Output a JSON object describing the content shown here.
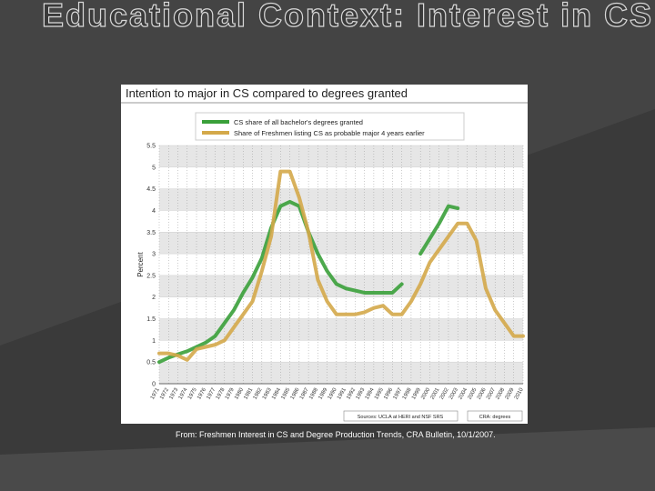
{
  "slide_title": "Educational Context: Interest in CS",
  "caption": "From: Freshmen Interest in CS and Degree Production Trends, CRA Bulletin, 10/1/2007.",
  "chart_data": {
    "type": "line",
    "title": "Intention to major in CS compared to degrees granted",
    "y_label": "Percent",
    "categories": [
      "1971",
      "1972",
      "1973",
      "1974",
      "1975",
      "1976",
      "1977",
      "1978",
      "1979",
      "1980",
      "1981",
      "1982",
      "1983",
      "1984",
      "1985",
      "1986",
      "1987",
      "1988",
      "1989",
      "1990",
      "1991",
      "1992",
      "1993",
      "1994",
      "1995",
      "1996",
      "1997",
      "1998",
      "1999",
      "2000",
      "2001",
      "2002",
      "2003",
      "2004",
      "2005",
      "2006",
      "2007",
      "2008",
      "2009",
      "2010"
    ],
    "series": [
      {
        "name": "CS share of all bachelor's degrees granted",
        "color": "#3aa03a",
        "values": [
          0.5,
          0.6,
          0.68,
          0.75,
          0.85,
          0.95,
          1.1,
          1.4,
          1.7,
          2.1,
          2.45,
          2.9,
          3.6,
          4.1,
          4.2,
          4.1,
          3.5,
          3.0,
          2.6,
          2.3,
          2.2,
          2.15,
          2.1,
          2.1,
          2.1,
          2.1,
          2.3,
          null,
          3.0,
          3.35,
          3.7,
          4.1,
          4.05,
          null,
          null,
          null,
          null,
          null,
          null,
          null
        ]
      },
      {
        "name": "Share of Freshmen listing CS as probable major 4 years earlier",
        "color": "#d4a94a",
        "values": [
          0.7,
          0.7,
          0.65,
          0.55,
          0.8,
          0.85,
          0.9,
          1.0,
          1.3,
          1.6,
          1.9,
          2.6,
          3.4,
          4.9,
          4.9,
          4.3,
          3.5,
          2.4,
          1.9,
          1.6,
          1.6,
          1.6,
          1.65,
          1.75,
          1.8,
          1.6,
          1.6,
          1.9,
          2.3,
          2.8,
          3.1,
          3.4,
          3.7,
          3.7,
          3.3,
          2.2,
          1.7,
          1.4,
          1.1,
          1.1
        ]
      }
    ],
    "ylim": [
      0,
      5.5
    ],
    "yticks": [
      0,
      0.5,
      1,
      1.5,
      2,
      2.5,
      3,
      3.5,
      4,
      4.5,
      5,
      5.5
    ],
    "grid": true,
    "sources": [
      "Sources: UCLA at HERI and NSF SRS",
      "CRA: degrees"
    ]
  }
}
